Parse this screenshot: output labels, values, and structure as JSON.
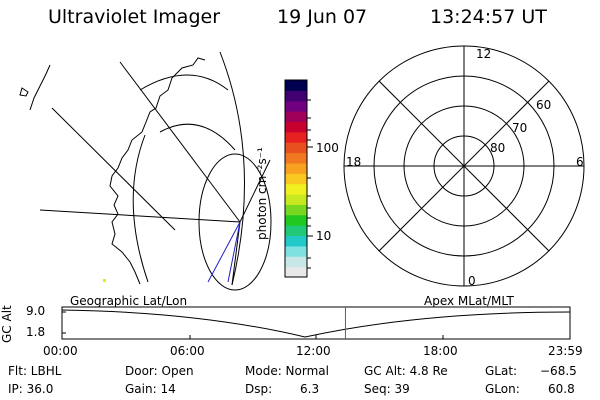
{
  "header": {
    "title": "Ultraviolet Imager",
    "date": "19 Jun 07",
    "time": "13:24:57 UT"
  },
  "colorbar": {
    "unit_label": "photon cm⁻²s⁻¹",
    "tick_100": "100",
    "tick_10": "10",
    "colors": [
      "#e8e8e8",
      "#c8e8e8",
      "#7fe0e0",
      "#20c8c8",
      "#20c878",
      "#20c820",
      "#78d820",
      "#c8e820",
      "#f0f020",
      "#f8c820",
      "#f8a020",
      "#f07820",
      "#e85020",
      "#e82020",
      "#c80030",
      "#a00058",
      "#700080",
      "#400070",
      "#000050"
    ]
  },
  "map_labels": {
    "left_panel": "Geographic Lat/Lon",
    "right_panel": "Apex MLat/MLT",
    "mlt_12": "12",
    "mlt_18": "18",
    "mlt_6": "6",
    "mlt_0": "0",
    "mlat_60": "60",
    "mlat_70": "70",
    "mlat_80": "80"
  },
  "altitude_plot": {
    "ylabel": "GC Alt",
    "ymax": "9.0",
    "ymin": "1.8",
    "time_ticks": [
      "00:00",
      "06:00",
      "12:00",
      "18:00",
      "23:59"
    ],
    "current_time_frac": 0.558,
    "cursor_color": "#c83232"
  },
  "info": {
    "flt": "Flt: LBHL",
    "ip": "IP: 36.0",
    "door": "Door: Open",
    "gain": "Gain: 14",
    "mode": "Mode: Normal",
    "dsp_label": "Dsp:",
    "dsp_value": "6.3",
    "gc_alt": "GC Alt: 4.8 Re",
    "seq": "Seq: 39",
    "glat_label": "GLat:",
    "glat_value": "−68.5",
    "glon_label": "GLon:",
    "glon_value": "60.8"
  }
}
